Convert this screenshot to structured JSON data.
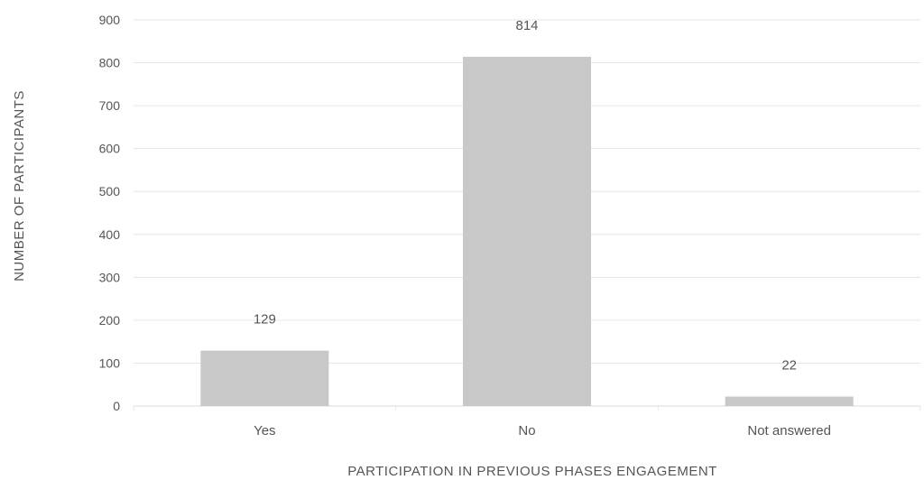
{
  "chart_data": {
    "type": "bar",
    "title": "",
    "xlabel": "PARTICIPATION IN PREVIOUS PHASES ENGAGEMENT",
    "ylabel": "NUMBER OF PARTICIPANTS",
    "categories": [
      "Yes",
      "No",
      "Not answered"
    ],
    "values": [
      129,
      814,
      22
    ],
    "data_labels": [
      "129",
      "814",
      "22"
    ],
    "ylim": [
      0,
      900
    ],
    "yticks": [
      0,
      100,
      200,
      300,
      400,
      500,
      600,
      700,
      800,
      900
    ],
    "ytick_labels": [
      "0",
      "100",
      "200",
      "300",
      "400",
      "500",
      "600",
      "700",
      "800",
      "900"
    ],
    "grid": true,
    "legend": "none",
    "colors": {
      "bar": "#c8c8c8",
      "grid": "#e6e6e6",
      "text": "#555555"
    }
  }
}
